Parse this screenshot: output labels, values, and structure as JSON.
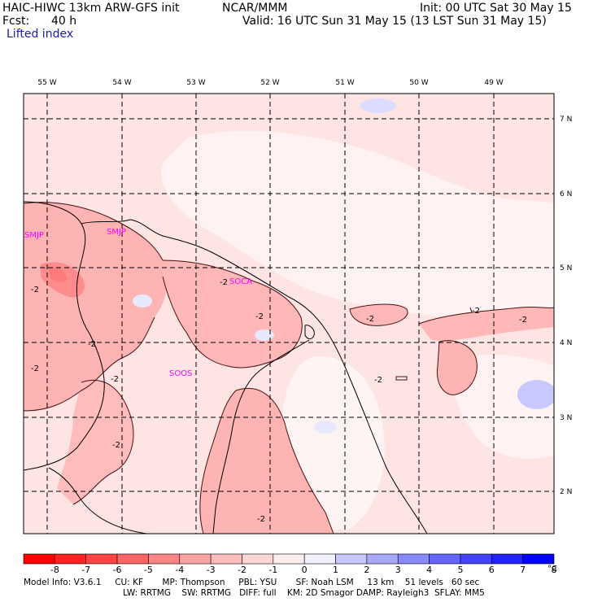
{
  "header": {
    "model_title": "HAIC-HIWC 13km ARW-GFS init",
    "org": "NCAR/MMM",
    "init": "Init: 00 UTC Sat 30 May 15",
    "fcst_label": "Fcst:",
    "fcst_value": "40 h",
    "valid": "Valid: 16 UTC Sun 31 May 15 (13 LST Sun 31 May 15)",
    "field": "Lifted index"
  },
  "map": {
    "lon_labels": [
      "55 W",
      "54 W",
      "53 W",
      "52 W",
      "51 W",
      "50 W",
      "49 W"
    ],
    "lat_labels": [
      "7 N",
      "6 N",
      "5 N",
      "4 N",
      "3 N",
      "2 N"
    ],
    "stations": [
      "SMJP",
      "SOCA",
      "SMJP",
      "SOOS"
    ],
    "contour_labels": [
      "-2",
      "-2",
      "-2",
      "-2",
      "-2",
      "-2",
      "-2",
      "-2",
      "-2",
      "-2",
      "-2",
      "-2"
    ]
  },
  "colorbar": {
    "unit": "°C",
    "ticks": [
      "-8",
      "-7",
      "-6",
      "-5",
      "-4",
      "-3",
      "-2",
      "-1",
      "0",
      "1",
      "2",
      "3",
      "4",
      "5",
      "6",
      "7",
      "8"
    ],
    "colors": [
      "#ff0000",
      "#ff2222",
      "#ff4444",
      "#ff6464",
      "#ff8484",
      "#ffa2a2",
      "#ffbcbc",
      "#ffd6d6",
      "#ffecec",
      "#f0f0ff",
      "#c8c8ff",
      "#a8a8ff",
      "#8888ff",
      "#6464ff",
      "#4444ff",
      "#2222ff",
      "#0000ff"
    ]
  },
  "footer": {
    "line1": "Model Info: V3.6.1     CU: KF       MP: Thompson     PBL: YSU       SF: Noah LSM     13 km    51 levels   60 sec",
    "line2": "LW: RRTMG    SW: RRTMG   DIFF: full    KM: 2D Smagor DAMP: Rayleigh3  SFLAY: MM5"
  }
}
